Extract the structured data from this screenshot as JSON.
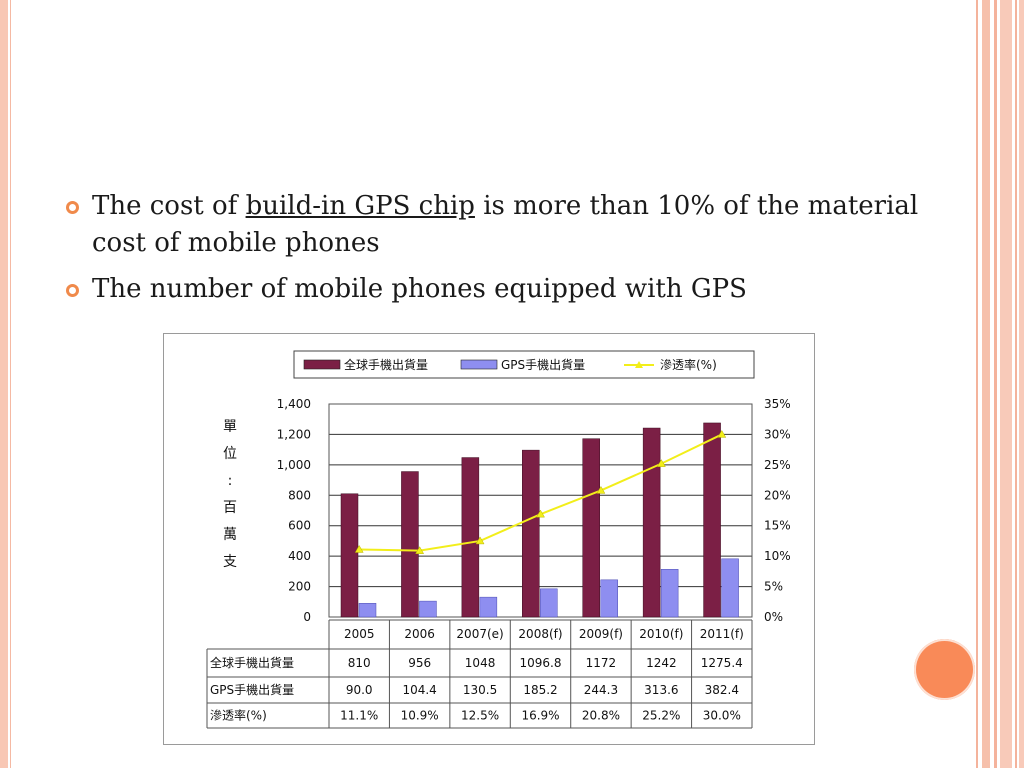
{
  "slide": {
    "bullet1": {
      "before": "The cost of ",
      "link": "build-in GPS chip",
      "after": " is more than 10% of the material cost of mobile phones"
    },
    "bullet2": "The number of mobile phones equipped with GPS"
  },
  "colors": {
    "accent": "#f98a58",
    "bullet": "#f08a4b",
    "series_global": "#7b1f45",
    "series_gps": "#8e8ef0",
    "series_rate": "#f2ee1a"
  },
  "chart_data": {
    "type": "bar",
    "categories": [
      "2005",
      "2006",
      "2007(e)",
      "2008(f)",
      "2009(f)",
      "2010(f)",
      "2011(f)"
    ],
    "series": [
      {
        "name": "全球手機出貨量",
        "type": "bar",
        "axis": "left",
        "values": [
          810,
          956,
          1048,
          1096.8,
          1172,
          1242,
          1275.4
        ],
        "labels": [
          "810",
          "956",
          "1048",
          "1096.8",
          "1172",
          "1242",
          "1275.4"
        ]
      },
      {
        "name": "GPS手機出貨量",
        "type": "bar",
        "axis": "left",
        "values": [
          90.0,
          104.4,
          130.5,
          185.2,
          244.3,
          313.6,
          382.4
        ],
        "labels": [
          "90.0",
          "104.4",
          "130.5",
          "185.2",
          "244.3",
          "313.6",
          "382.4"
        ]
      },
      {
        "name": "滲透率(%)",
        "type": "line",
        "axis": "right",
        "values": [
          11.1,
          10.9,
          12.5,
          16.9,
          20.8,
          25.2,
          30.0
        ],
        "labels": [
          "11.1%",
          "10.9%",
          "12.5%",
          "16.9%",
          "20.8%",
          "25.2%",
          "30.0%"
        ]
      }
    ],
    "ylabel": "單位：百萬支",
    "ylim": [
      0,
      1400
    ],
    "y_ticks": [
      "0",
      "200",
      "400",
      "600",
      "800",
      "1,000",
      "1,200",
      "1,400"
    ],
    "y2lim": [
      0,
      35
    ],
    "y2_ticks": [
      "0%",
      "5%",
      "10%",
      "15%",
      "20%",
      "25%",
      "30%",
      "35%"
    ],
    "legend": "top",
    "grid": true,
    "table": true
  }
}
